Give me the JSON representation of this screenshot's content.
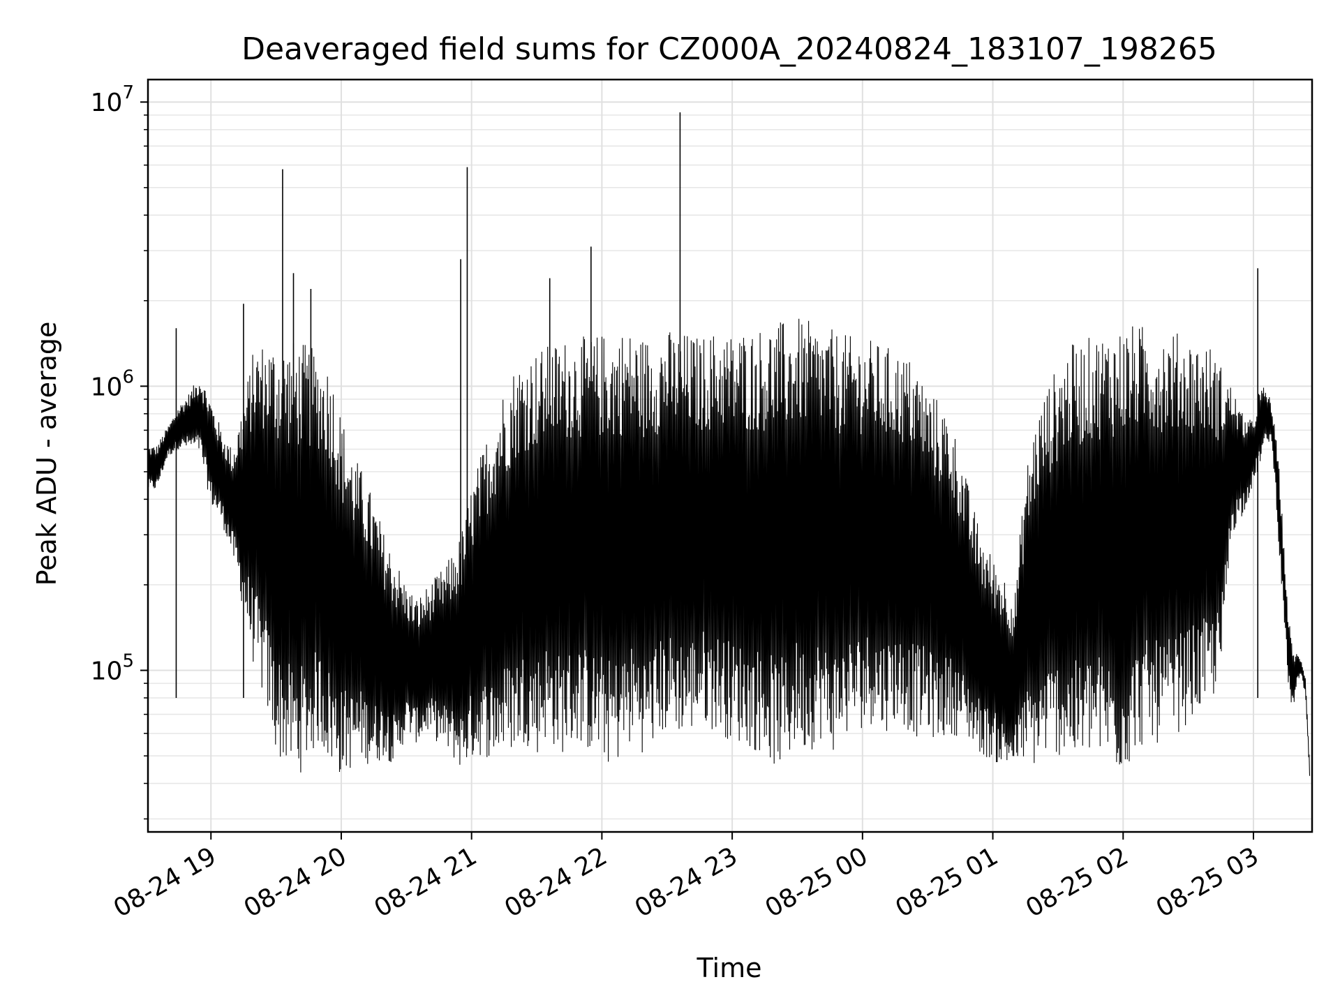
{
  "chart_data": {
    "type": "line",
    "title": "Deaveraged field sums for CZ000A_20240824_183107_198265",
    "xlabel": "Time",
    "ylabel": "Peak ADU - average",
    "yscale": "log",
    "ylim": [
      27000,
      12000000
    ],
    "xlim": [
      "2024-08-24T18:31",
      "2024-08-25T03:27"
    ],
    "grid": true,
    "line_color": "#000000",
    "x_ticks": [
      {
        "value": "2024-08-24T19:00",
        "label": "08-24 19"
      },
      {
        "value": "2024-08-24T20:00",
        "label": "08-24 20"
      },
      {
        "value": "2024-08-24T21:00",
        "label": "08-24 21"
      },
      {
        "value": "2024-08-24T22:00",
        "label": "08-24 22"
      },
      {
        "value": "2024-08-24T23:00",
        "label": "08-24 23"
      },
      {
        "value": "2024-08-25T00:00",
        "label": "08-25 00"
      },
      {
        "value": "2024-08-25T01:00",
        "label": "08-25 01"
      },
      {
        "value": "2024-08-25T02:00",
        "label": "08-25 02"
      },
      {
        "value": "2024-08-25T03:00",
        "label": "08-25 03"
      }
    ],
    "y_ticks": [
      {
        "value": 100000,
        "base": "10",
        "exp": "5"
      },
      {
        "value": 1000000,
        "base": "10",
        "exp": "6"
      },
      {
        "value": 10000000,
        "base": "10",
        "exp": "7"
      }
    ],
    "series": [
      {
        "x": [
          "2024-08-24T18:31",
          "2024-08-24T18:35",
          "2024-08-24T18:40",
          "2024-08-24T18:45",
          "2024-08-24T18:50",
          "2024-08-24T18:55",
          "2024-08-24T19:00",
          "2024-08-24T19:05",
          "2024-08-24T19:10",
          "2024-08-24T19:15",
          "2024-08-24T19:20",
          "2024-08-24T19:25",
          "2024-08-24T19:30",
          "2024-08-24T19:35",
          "2024-08-24T19:40",
          "2024-08-24T19:45",
          "2024-08-24T19:50",
          "2024-08-24T19:55",
          "2024-08-24T20:00",
          "2024-08-24T20:05",
          "2024-08-24T20:10",
          "2024-08-24T20:15",
          "2024-08-24T20:20",
          "2024-08-24T20:25",
          "2024-08-24T20:30",
          "2024-08-24T20:35",
          "2024-08-24T20:40",
          "2024-08-24T20:45",
          "2024-08-24T20:50",
          "2024-08-24T20:55",
          "2024-08-24T21:00",
          "2024-08-24T21:05",
          "2024-08-24T21:10",
          "2024-08-24T21:15",
          "2024-08-24T21:20",
          "2024-08-24T21:25",
          "2024-08-24T21:30",
          "2024-08-24T21:35",
          "2024-08-24T21:40",
          "2024-08-24T21:45",
          "2024-08-24T21:50",
          "2024-08-24T21:55",
          "2024-08-24T22:00",
          "2024-08-24T22:05",
          "2024-08-24T22:10",
          "2024-08-24T22:15",
          "2024-08-24T22:20",
          "2024-08-24T22:25",
          "2024-08-24T22:30",
          "2024-08-24T22:35",
          "2024-08-24T22:40",
          "2024-08-24T22:45",
          "2024-08-24T22:50",
          "2024-08-24T22:55",
          "2024-08-24T23:00",
          "2024-08-24T23:05",
          "2024-08-24T23:10",
          "2024-08-24T23:15",
          "2024-08-24T23:20",
          "2024-08-24T23:25",
          "2024-08-24T23:30",
          "2024-08-24T23:35",
          "2024-08-24T23:40",
          "2024-08-24T23:45",
          "2024-08-24T23:50",
          "2024-08-24T23:55",
          "2024-08-25T00:00",
          "2024-08-25T00:05",
          "2024-08-25T00:10",
          "2024-08-25T00:15",
          "2024-08-25T00:20",
          "2024-08-25T00:25",
          "2024-08-25T00:30",
          "2024-08-25T00:35",
          "2024-08-25T00:40",
          "2024-08-25T00:45",
          "2024-08-25T00:50",
          "2024-08-25T00:55",
          "2024-08-25T01:00",
          "2024-08-25T01:05",
          "2024-08-25T01:10",
          "2024-08-25T01:15",
          "2024-08-25T01:20",
          "2024-08-25T01:25",
          "2024-08-25T01:30",
          "2024-08-25T01:35",
          "2024-08-25T01:40",
          "2024-08-25T01:45",
          "2024-08-25T01:50",
          "2024-08-25T01:55",
          "2024-08-25T02:00",
          "2024-08-25T02:05",
          "2024-08-25T02:10",
          "2024-08-25T02:15",
          "2024-08-25T02:20",
          "2024-08-25T02:25",
          "2024-08-25T02:30",
          "2024-08-25T02:35",
          "2024-08-25T02:40",
          "2024-08-25T02:45",
          "2024-08-25T02:50",
          "2024-08-25T02:55",
          "2024-08-25T03:00",
          "2024-08-25T03:02",
          "2024-08-25T03:05",
          "2024-08-25T03:08",
          "2024-08-25T03:10",
          "2024-08-25T03:12",
          "2024-08-25T03:14",
          "2024-08-25T03:16",
          "2024-08-25T03:18",
          "2024-08-25T03:20",
          "2024-08-25T03:22",
          "2024-08-25T03:24",
          "2024-08-25T03:26",
          "2024-08-25T03:27"
        ],
        "min": [
          430000,
          430000,
          560000,
          600000,
          600000,
          580000,
          380000,
          330000,
          250000,
          160000,
          100000,
          75000,
          50000,
          45000,
          42000,
          48000,
          55000,
          45000,
          42000,
          45000,
          48000,
          45000,
          50000,
          45000,
          60000,
          55000,
          60000,
          55000,
          50000,
          45000,
          48000,
          50000,
          48000,
          50000,
          52000,
          55000,
          50000,
          58000,
          50000,
          52000,
          55000,
          50000,
          48000,
          45000,
          50000,
          55000,
          50000,
          55000,
          60000,
          60000,
          58000,
          65000,
          62000,
          60000,
          55000,
          55000,
          52000,
          50000,
          45000,
          45000,
          55000,
          50000,
          58000,
          50000,
          55000,
          60000,
          62000,
          65000,
          60000,
          65000,
          62000,
          58000,
          60000,
          55000,
          60000,
          58000,
          55000,
          50000,
          48000,
          45000,
          45000,
          48000,
          45000,
          50000,
          50000,
          48000,
          45000,
          50000,
          48000,
          45000,
          42000,
          50000,
          55000,
          55000,
          55000,
          60000,
          65000,
          70000,
          75000,
          90000,
          300000,
          350000,
          450000,
          500000,
          600000,
          650000,
          450000,
          250000,
          150000,
          90000,
          70000,
          90000,
          95000,
          80000,
          40000
        ],
        "max": [
          620000,
          620000,
          720000,
          850000,
          950000,
          1100000,
          900000,
          700000,
          600000,
          900000,
          1400000,
          1450000,
          1450000,
          1450000,
          1450000,
          1400000,
          1300000,
          1200000,
          800000,
          600000,
          500000,
          400000,
          300000,
          250000,
          200000,
          180000,
          200000,
          220000,
          250000,
          300000,
          450000,
          600000,
          800000,
          1000000,
          1200000,
          1300000,
          1350000,
          1400000,
          1450000,
          1500000,
          1500000,
          1500000,
          1550000,
          1550000,
          1600000,
          1550000,
          1500000,
          1550000,
          1600000,
          1550000,
          1550000,
          1500000,
          1550000,
          1600000,
          1550000,
          1600000,
          1600000,
          1650000,
          1700000,
          1700000,
          1750000,
          1700000,
          1650000,
          1600000,
          1550000,
          1500000,
          1500000,
          1450000,
          1400000,
          1350000,
          1300000,
          1200000,
          1000000,
          900000,
          800000,
          600000,
          400000,
          300000,
          250000,
          220000,
          180000,
          500000,
          800000,
          1000000,
          1200000,
          1400000,
          1450000,
          1500000,
          1550000,
          1600000,
          1650000,
          1650000,
          1650000,
          1600000,
          1600000,
          1550000,
          1500000,
          1450000,
          1400000,
          1200000,
          1000000,
          800000,
          750000,
          950000,
          1000000,
          900000,
          700000,
          500000,
          280000,
          160000,
          120000,
          115000,
          110000,
          95000,
          45000
        ],
        "spikes": [
          {
            "x": "2024-08-24T19:33",
            "y": 5800000
          },
          {
            "x": "2024-08-24T19:38",
            "y": 2500000
          },
          {
            "x": "2024-08-24T20:58",
            "y": 5900000
          },
          {
            "x": "2024-08-24T20:55",
            "y": 2800000
          },
          {
            "x": "2024-08-24T21:36",
            "y": 2400000
          },
          {
            "x": "2024-08-24T21:55",
            "y": 3100000
          },
          {
            "x": "2024-08-24T22:36",
            "y": 9200000
          },
          {
            "x": "2024-08-25T03:02",
            "y": 2600000
          },
          {
            "x": "2024-08-24T18:44",
            "y": 1600000
          },
          {
            "x": "2024-08-24T19:15",
            "y": 1950000
          },
          {
            "x": "2024-08-24T19:46",
            "y": 2200000
          }
        ]
      }
    ]
  }
}
